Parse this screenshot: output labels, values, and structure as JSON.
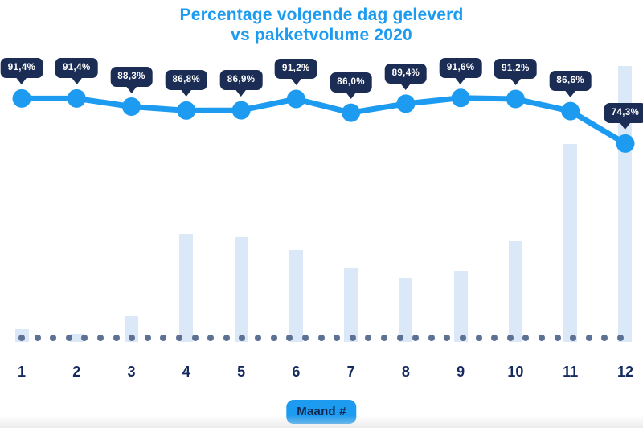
{
  "title": {
    "line1": "Percentage volgende dag geleverd",
    "line2": "vs pakketvolume 2020"
  },
  "x_axis": {
    "label_pill": "Maand #",
    "tick_labels": [
      "1",
      "2",
      "3",
      "4",
      "5",
      "6",
      "7",
      "8",
      "9",
      "10",
      "11",
      "12"
    ]
  },
  "colors": {
    "accent": "#1d9bf0",
    "badge_navy": "#1b2d55",
    "bar_fill": "#dbe8f8",
    "baseline_dot": "#5d7194",
    "tick_label_navy": "#152a5e",
    "pill_text_navy": "#13294f",
    "badge_text": "#ffffff"
  },
  "chart_data": {
    "type": "line+bar combo",
    "title": "Percentage volgende dag geleverd vs pakketvolume 2020",
    "xlabel": "Maand #",
    "categories": [
      1,
      2,
      3,
      4,
      5,
      6,
      7,
      8,
      9,
      10,
      11,
      12
    ],
    "legend": "none",
    "grid": "dotted zero-baseline only, no y-axis shown",
    "series": [
      {
        "name": "Percentage volgende dag geleverd",
        "type": "line",
        "unit": "%",
        "color": "#1d9bf0",
        "values": [
          91.4,
          91.4,
          88.3,
          86.8,
          86.9,
          91.2,
          86.0,
          89.4,
          91.6,
          91.2,
          86.6,
          74.3
        ],
        "point_labels": [
          "91,4%",
          "91,4%",
          "88,3%",
          "86,8%",
          "86,9%",
          "91,2%",
          "86,0%",
          "89,4%",
          "91,6%",
          "91,2%",
          "86,6%",
          "74,3%"
        ]
      },
      {
        "name": "Pakketvolume 2020",
        "type": "bar",
        "unit": "relative volume index (december = 100, no axis shown)",
        "color": "#dbe8f8",
        "values": [
          4.7,
          2.9,
          9.3,
          39.1,
          38.2,
          33.2,
          26.8,
          23.0,
          25.7,
          36.7,
          71.7,
          100
        ]
      }
    ]
  }
}
